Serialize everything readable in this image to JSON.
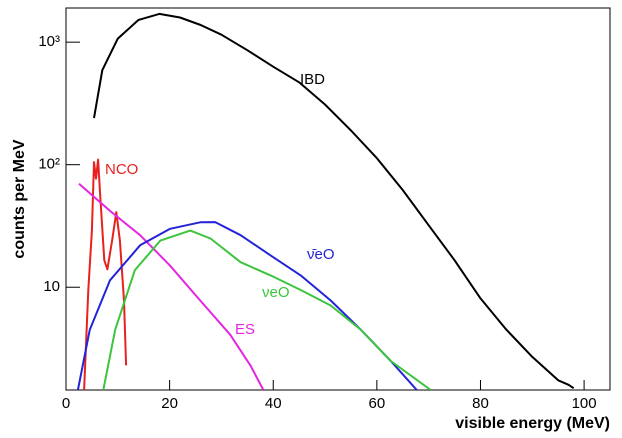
{
  "chart_data": {
    "type": "line",
    "xlabel": "visible energy (MeV)",
    "ylabel": "counts per MeV",
    "xlim": [
      0,
      105
    ],
    "ylim": [
      1.45,
      1900
    ],
    "log_y": true,
    "xticks": [
      0,
      20,
      40,
      60,
      80,
      100
    ],
    "yticks": [
      10,
      {
        "value": 100,
        "label": "10²"
      },
      {
        "value": 1000,
        "label": "10³"
      }
    ],
    "series": [
      {
        "name": "IBD",
        "color": "#000000",
        "x": [
          5.4,
          7,
          10,
          14,
          18,
          22,
          26,
          30,
          35,
          40,
          45,
          50,
          55,
          60,
          65,
          70,
          75,
          80,
          85,
          90,
          95,
          97,
          98
        ],
        "values": [
          240,
          590,
          1070,
          1520,
          1700,
          1590,
          1380,
          1150,
          860,
          630,
          470,
          310,
          190,
          113,
          62,
          32,
          16.6,
          8.1,
          4.5,
          2.7,
          1.74,
          1.6,
          1.5
        ]
      },
      {
        "name": "NCO",
        "color": "#e8211e",
        "x": [
          3.5,
          4.3,
          5,
          5.4,
          5.8,
          6.2,
          6.6,
          7.4,
          8.0,
          8.9,
          9.7,
          10.4,
          11.2,
          11.6
        ],
        "values": [
          1.45,
          9.5,
          29,
          105,
          77,
          110,
          56,
          16.6,
          14,
          24,
          41,
          24,
          7.8,
          2.3
        ]
      },
      {
        "name": "ES",
        "color": "#e526e0",
        "x": [
          2.5,
          8.5,
          14.3,
          20.1,
          25.9,
          31.7,
          35.6,
          38.1
        ],
        "values": [
          70,
          42,
          26.6,
          15,
          7.8,
          4.1,
          2.3,
          1.45
        ]
      },
      {
        "name": "ν̄eO",
        "color": "#2323d8",
        "x": [
          2.3,
          4.6,
          8.5,
          14.3,
          20.1,
          25.9,
          28.8,
          33.7,
          39.5,
          45.3,
          51.1,
          56.9,
          62.7,
          67.7
        ],
        "values": [
          1.45,
          4.5,
          11.4,
          22,
          30,
          33.9,
          34,
          26.6,
          18.2,
          12.5,
          7.8,
          4.5,
          2.5,
          1.45
        ]
      },
      {
        "name": "νeO",
        "color": "#3cc43c",
        "x": [
          7.2,
          9.5,
          13.3,
          18.2,
          24,
          27.9,
          33.7,
          39.5,
          45.3,
          51.1,
          56.9,
          62.7,
          70.4
        ],
        "values": [
          1.45,
          4.5,
          13.8,
          24,
          29,
          25,
          16,
          12.5,
          9.5,
          7.1,
          4.5,
          2.5,
          1.45
        ]
      }
    ]
  }
}
